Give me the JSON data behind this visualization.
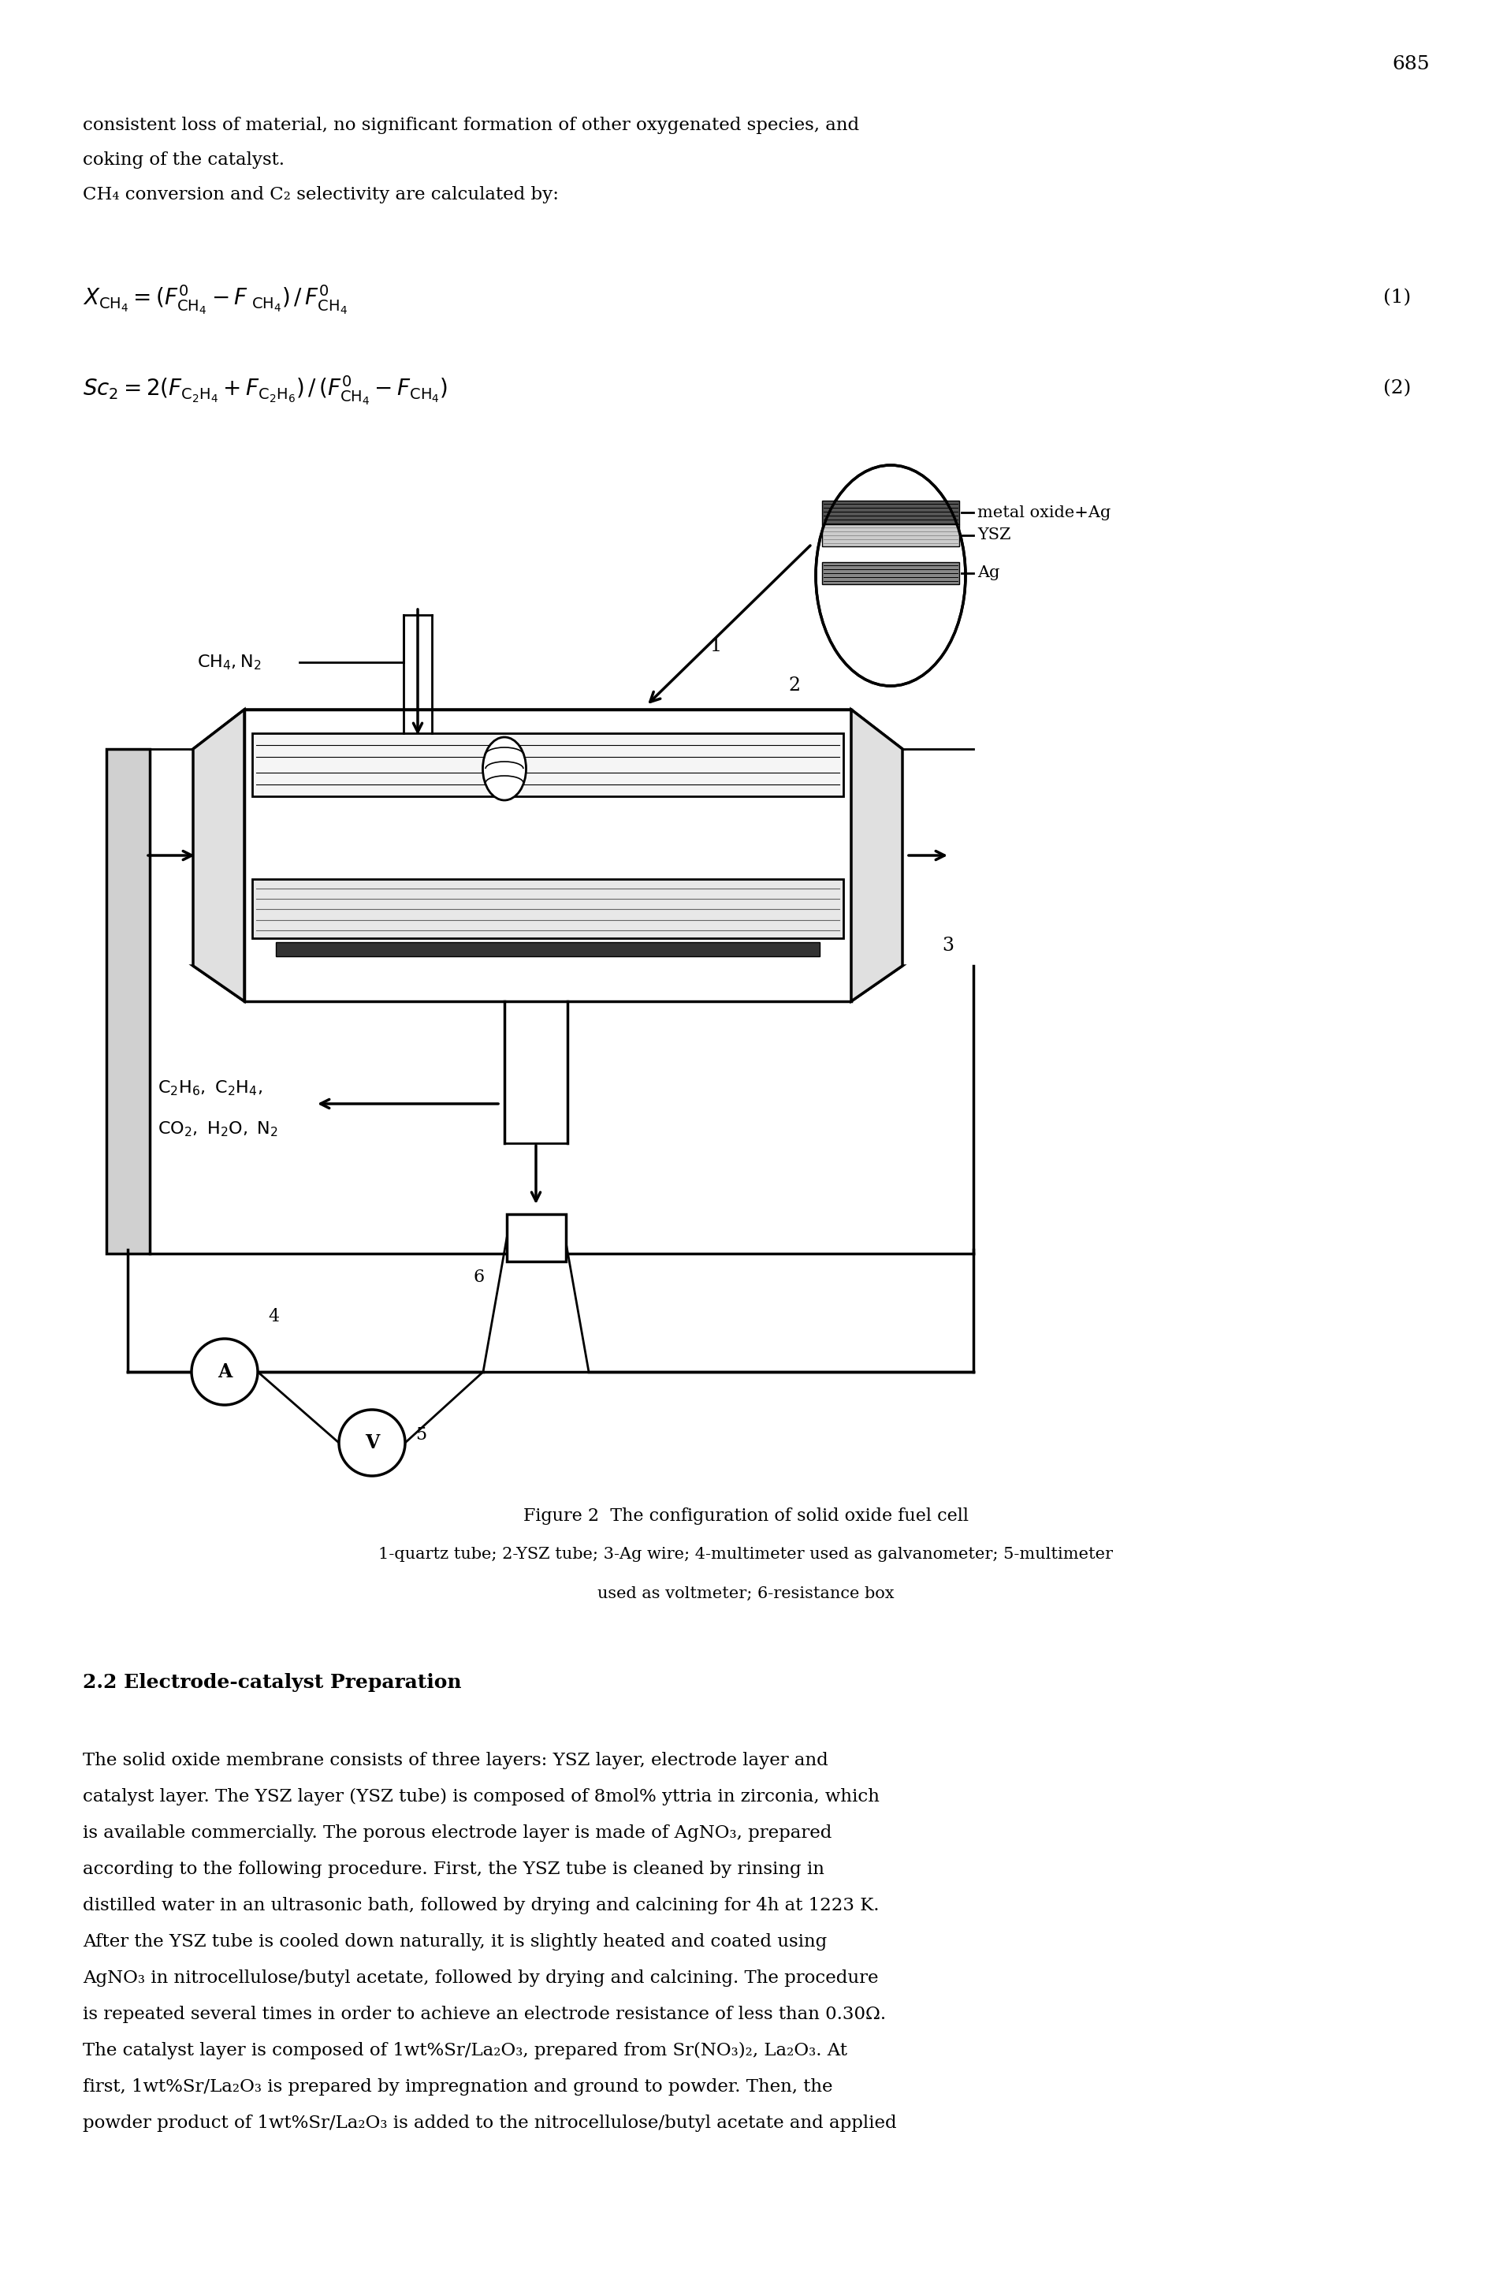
{
  "page_number": "685",
  "top_text_lines": [
    "consistent loss of material, no significant formation of other oxygenated species, and",
    "coking of the catalyst.",
    "CH₄ conversion and C₂ selectivity are calculated by:"
  ],
  "eq1_label": "(1)",
  "eq2_label": "(2)",
  "figure_caption_line1": "Figure 2  The configuration of solid oxide fuel cell",
  "figure_caption_line2": "1-quartz tube; 2-YSZ tube; 3-Ag wire; 4-multimeter used as galvanometer; 5-multimeter",
  "figure_caption_line3": "used as voltmeter; 6-resistance box",
  "section_header": "2.2 Electrode-catalyst Preparation",
  "body_text": [
    "The solid oxide membrane consists of three layers: YSZ layer, electrode layer and",
    "catalyst layer. The YSZ layer (YSZ tube) is composed of 8mol% yttria in zirconia, which",
    "is available commercially. The porous electrode layer is made of AgNO₃, prepared",
    "according to the following procedure. First, the YSZ tube is cleaned by rinsing in",
    "distilled water in an ultrasonic bath, followed by drying and calcining for 4h at 1223 K.",
    "After the YSZ tube is cooled down naturally, it is slightly heated and coated using",
    "AgNO₃ in nitrocellulose/butyl acetate, followed by drying and calcining. The procedure",
    "is repeated several times in order to achieve an electrode resistance of less than 0.30Ω.",
    "The catalyst layer is composed of 1wt%Sr/La₂O₃, prepared from Sr(NO₃)₂, La₂O₃. At",
    "first, 1wt%Sr/La₂O₃ is prepared by impregnation and ground to powder. Then, the",
    "powder product of 1wt%Sr/La₂O₃ is added to the nitrocellulose/butyl acetate and applied"
  ],
  "bg_color": "#ffffff",
  "text_color": "#000000",
  "lw": 2.0,
  "lw_thick": 2.5
}
